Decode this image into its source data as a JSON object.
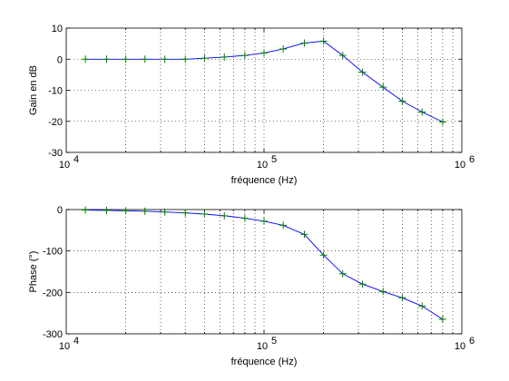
{
  "chart_data": [
    {
      "type": "line",
      "xscale": "log",
      "xlim": [
        10000,
        1000000
      ],
      "ylim": [
        -30,
        10
      ],
      "xlabel": "fréquence (Hz)",
      "ylabel": "Gain en dB",
      "grid": true,
      "x_ticks": [
        {
          "value": 10000,
          "base": "10",
          "exp": "4"
        },
        {
          "value": 100000,
          "base": "10",
          "exp": "5"
        },
        {
          "value": 1000000,
          "base": "10",
          "exp": "6"
        }
      ],
      "y_ticks": [
        10,
        0,
        -10,
        -20,
        -30
      ],
      "line_color": "#0000ff",
      "marker_color": "#008000",
      "series": [
        {
          "x": [
            12500,
            16000,
            20000,
            25000,
            31500,
            40000,
            50000,
            63000,
            80000,
            100000,
            125000,
            160000,
            200000,
            250000,
            315000,
            400000,
            500000,
            630000,
            800000
          ],
          "y": [
            0,
            0,
            0,
            0,
            0,
            0,
            0.3,
            0.7,
            1.2,
            2.0,
            3.3,
            5.2,
            5.8,
            1.2,
            -4.2,
            -9.0,
            -13.5,
            -17.0,
            -20.2
          ]
        }
      ]
    },
    {
      "type": "line",
      "xscale": "log",
      "xlim": [
        10000,
        1000000
      ],
      "ylim": [
        -300,
        0
      ],
      "xlabel": "fréquence (Hz)",
      "ylabel": "Phase (°)",
      "grid": true,
      "x_ticks": [
        {
          "value": 10000,
          "base": "10",
          "exp": "4"
        },
        {
          "value": 100000,
          "base": "10",
          "exp": "5"
        },
        {
          "value": 1000000,
          "base": "10",
          "exp": "6"
        }
      ],
      "y_ticks": [
        0,
        -100,
        -200,
        -300
      ],
      "line_color": "#0000ff",
      "marker_color": "#008000",
      "series": [
        {
          "x": [
            12500,
            16000,
            20000,
            25000,
            31500,
            40000,
            50000,
            63000,
            80000,
            100000,
            125000,
            160000,
            200000,
            250000,
            315000,
            400000,
            500000,
            630000,
            800000
          ],
          "y": [
            -1,
            -2,
            -3,
            -4,
            -6,
            -8,
            -11,
            -15,
            -21,
            -28,
            -38,
            -60,
            -110,
            -155,
            -180,
            -198,
            -213,
            -233,
            -265
          ]
        }
      ]
    }
  ]
}
